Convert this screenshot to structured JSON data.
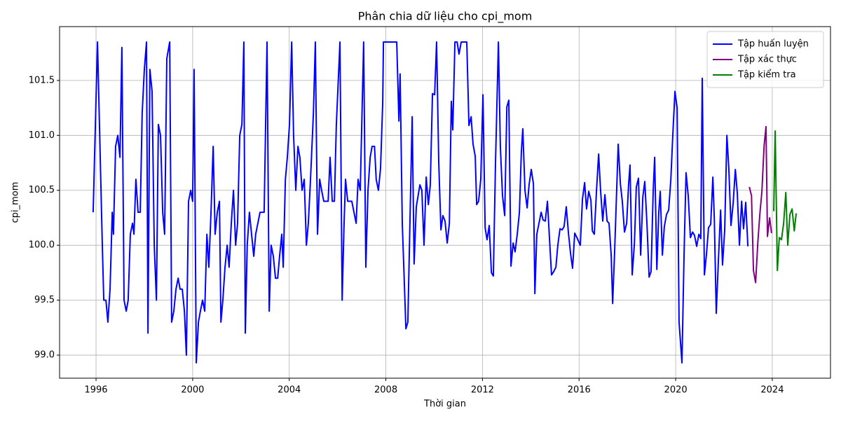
{
  "chart_data": {
    "type": "line",
    "title": "Phân chia dữ liệu cho cpi_mom",
    "x_label": "Thời gian",
    "y_label": "cpi_mom",
    "xlim": [
      1994.49,
      2026.41
    ],
    "ylim": [
      98.79,
      101.99
    ],
    "xticks": [
      1996,
      2000,
      2004,
      2008,
      2012,
      2016,
      2020,
      2024
    ],
    "yticks": [
      {
        "value": 99,
        "label": "99.0"
      },
      99.5,
      {
        "value": 100,
        "label": "100.0"
      },
      100.5,
      {
        "value": 101,
        "label": "101.0"
      },
      101.5
    ],
    "grid": true,
    "legend": "upper right",
    "series": [
      {
        "name": "Tập huấn luyện",
        "color": "#0000ff",
        "x": [
          1995.88,
          1996.06,
          1996.26,
          1996.32,
          1996.41,
          1996.49,
          1996.58,
          1996.67,
          1996.72,
          1996.81,
          1996.9,
          1996.99,
          1997.07,
          1997.16,
          1997.25,
          1997.33,
          1997.42,
          1997.51,
          1997.57,
          1997.65,
          1997.74,
          1997.83,
          1997.91,
          1998.0,
          1998.09,
          1998.15,
          1998.23,
          1998.32,
          1998.41,
          1998.5,
          1998.58,
          1998.67,
          1998.76,
          1998.84,
          1998.93,
          1999.05,
          1999.13,
          1999.22,
          1999.31,
          1999.4,
          1999.48,
          1999.57,
          1999.66,
          1999.74,
          1999.83,
          1999.92,
          2000.0,
          2000.06,
          2000.15,
          2000.24,
          2000.32,
          2000.41,
          2000.5,
          2000.59,
          2000.67,
          2000.76,
          2000.85,
          2000.93,
          2001.02,
          2001.11,
          2001.17,
          2001.25,
          2001.34,
          2001.43,
          2001.51,
          2001.6,
          2001.69,
          2001.78,
          2001.86,
          2001.95,
          2002.04,
          2002.12,
          2002.18,
          2002.26,
          2002.35,
          2002.44,
          2002.53,
          2002.61,
          2002.7,
          2002.79,
          2002.88,
          2002.96,
          2003.08,
          2003.17,
          2003.25,
          2003.34,
          2003.43,
          2003.52,
          2003.6,
          2003.69,
          2003.75,
          2003.84,
          2003.92,
          2004.01,
          2004.1,
          2004.18,
          2004.27,
          2004.36,
          2004.44,
          2004.53,
          2004.62,
          2004.71,
          2004.79,
          2004.88,
          2005.0,
          2005.08,
          2005.17,
          2005.26,
          2005.34,
          2005.43,
          2005.52,
          2005.61,
          2005.69,
          2005.78,
          2005.87,
          2005.95,
          2006.1,
          2006.19,
          2006.27,
          2006.33,
          2006.42,
          2006.5,
          2006.59,
          2006.68,
          2006.77,
          2006.85,
          2006.94,
          2007.08,
          2007.17,
          2007.26,
          2007.35,
          2007.43,
          2007.53,
          2007.6,
          2007.69,
          2007.78,
          2007.87,
          2007.9,
          2008.45,
          2008.54,
          2008.59,
          2008.68,
          2008.83,
          2008.91,
          2009.09,
          2009.17,
          2009.26,
          2009.41,
          2009.49,
          2009.58,
          2009.67,
          2009.76,
          2009.84,
          2009.93,
          2010.02,
          2010.1,
          2010.19,
          2010.28,
          2010.36,
          2010.45,
          2010.54,
          2010.63,
          2010.71,
          2010.77,
          2010.86,
          2010.95,
          2011.03,
          2011.12,
          2011.35,
          2011.44,
          2011.53,
          2011.61,
          2011.7,
          2011.76,
          2011.84,
          2011.93,
          2012.02,
          2012.11,
          2012.19,
          2012.28,
          2012.37,
          2012.45,
          2012.54,
          2012.66,
          2012.74,
          2012.83,
          2012.92,
          2013.01,
          2013.09,
          2013.18,
          2013.27,
          2013.35,
          2013.44,
          2013.53,
          2013.61,
          2013.67,
          2013.76,
          2013.85,
          2013.93,
          2014.02,
          2014.11,
          2014.17,
          2014.25,
          2014.34,
          2014.43,
          2014.51,
          2014.6,
          2014.69,
          2014.78,
          2014.86,
          2014.95,
          2015.04,
          2015.12,
          2015.21,
          2015.3,
          2015.38,
          2015.47,
          2015.56,
          2015.65,
          2015.73,
          2015.82,
          2015.91,
          2015.99,
          2016.05,
          2016.14,
          2016.23,
          2016.31,
          2016.4,
          2016.49,
          2016.55,
          2016.63,
          2016.72,
          2016.81,
          2016.89,
          2016.98,
          2017.07,
          2017.16,
          2017.24,
          2017.33,
          2017.39,
          2017.47,
          2017.62,
          2017.71,
          2017.79,
          2017.88,
          2017.97,
          2018.05,
          2018.11,
          2018.2,
          2018.29,
          2018.37,
          2018.46,
          2018.55,
          2018.64,
          2018.72,
          2018.81,
          2018.9,
          2018.98,
          2019.07,
          2019.13,
          2019.22,
          2019.3,
          2019.36,
          2019.45,
          2019.53,
          2019.62,
          2019.71,
          2019.8,
          2019.88,
          2019.97,
          2020.06,
          2020.14,
          2020.26,
          2020.35,
          2020.43,
          2020.52,
          2020.61,
          2020.7,
          2020.78,
          2020.87,
          2020.96,
          2021.04,
          2021.1,
          2021.19,
          2021.28,
          2021.36,
          2021.45,
          2021.54,
          2021.6,
          2021.68,
          2021.77,
          2021.86,
          2021.94,
          2022.03,
          2022.12,
          2022.2,
          2022.29,
          2022.38,
          2022.47,
          2022.55,
          2022.64,
          2022.73,
          2022.81,
          2022.9,
          2022.99
        ],
        "values": [
          100.3,
          101.85,
          100.0,
          99.5,
          99.5,
          99.3,
          99.6,
          100.3,
          100.1,
          100.9,
          101.0,
          100.8,
          101.8,
          99.5,
          99.4,
          99.5,
          100.1,
          100.2,
          100.1,
          100.6,
          100.3,
          100.3,
          101.2,
          101.6,
          101.85,
          99.2,
          101.6,
          101.4,
          100.0,
          99.5,
          101.1,
          101.0,
          100.3,
          100.1,
          101.7,
          101.85,
          99.3,
          99.4,
          99.6,
          99.7,
          99.6,
          99.6,
          99.4,
          99.0,
          100.4,
          100.5,
          100.4,
          101.6,
          98.93,
          99.3,
          99.4,
          99.5,
          99.4,
          100.1,
          99.8,
          100.3,
          100.9,
          100.1,
          100.3,
          100.4,
          99.3,
          99.5,
          99.8,
          100.0,
          99.8,
          100.2,
          100.5,
          100.0,
          100.2,
          101.0,
          101.1,
          101.85,
          99.2,
          100.0,
          100.3,
          100.1,
          99.9,
          100.1,
          100.2,
          100.3,
          100.3,
          100.3,
          101.85,
          99.4,
          100.0,
          99.9,
          99.7,
          99.7,
          99.9,
          100.1,
          99.8,
          100.6,
          100.8,
          101.1,
          101.85,
          101.0,
          100.5,
          100.9,
          100.8,
          100.5,
          100.6,
          100.0,
          100.2,
          100.6,
          101.2,
          101.85,
          100.1,
          100.6,
          100.5,
          100.4,
          100.4,
          100.4,
          100.8,
          100.4,
          100.4,
          101.1,
          101.85,
          99.5,
          100.2,
          100.6,
          100.4,
          100.4,
          100.4,
          100.3,
          100.2,
          100.6,
          100.5,
          101.85,
          99.8,
          100.5,
          100.8,
          100.9,
          100.9,
          100.6,
          100.5,
          100.7,
          101.3,
          101.85,
          101.85,
          101.13,
          101.56,
          100.2,
          99.24,
          99.3,
          101.17,
          99.83,
          100.35,
          100.55,
          100.5,
          100.0,
          100.62,
          100.37,
          100.55,
          101.38,
          101.37,
          101.85,
          100.75,
          100.14,
          100.27,
          100.22,
          100.02,
          100.2,
          101.31,
          101.05,
          101.85,
          101.85,
          101.74,
          101.85,
          101.85,
          101.09,
          101.17,
          100.92,
          100.81,
          100.37,
          100.4,
          100.6,
          101.37,
          100.16,
          100.05,
          100.18,
          99.75,
          99.72,
          100.75,
          101.85,
          100.9,
          100.45,
          100.27,
          101.26,
          101.32,
          99.81,
          100.02,
          99.94,
          100.1,
          100.3,
          100.85,
          101.06,
          100.5,
          100.34,
          100.55,
          100.69,
          100.56,
          99.56,
          100.1,
          100.2,
          100.3,
          100.23,
          100.22,
          100.4,
          100.04,
          99.73,
          99.76,
          99.8,
          100.0,
          100.15,
          100.14,
          100.17,
          100.35,
          100.11,
          99.92,
          99.79,
          100.11,
          100.07,
          100.03,
          100.0,
          100.42,
          100.57,
          100.33,
          100.49,
          100.41,
          100.13,
          100.1,
          100.49,
          100.83,
          100.5,
          100.22,
          100.46,
          100.22,
          100.2,
          99.91,
          99.47,
          99.93,
          100.92,
          100.56,
          100.4,
          100.12,
          100.2,
          100.55,
          100.73,
          99.73,
          100.01,
          100.53,
          100.61,
          99.91,
          100.44,
          100.58,
          100.2,
          99.71,
          99.76,
          100.5,
          100.8,
          99.78,
          100.3,
          100.49,
          99.91,
          100.17,
          100.28,
          100.32,
          100.6,
          101.0,
          101.4,
          101.25,
          99.3,
          98.93,
          99.95,
          100.66,
          100.45,
          100.07,
          100.12,
          100.09,
          99.99,
          100.1,
          100.06,
          101.52,
          99.73,
          99.93,
          100.16,
          100.19,
          100.62,
          100.24,
          99.38,
          99.87,
          100.32,
          99.82,
          100.14,
          101.0,
          100.7,
          100.18,
          100.38,
          100.69,
          100.48,
          100.0,
          100.4,
          100.15,
          100.39,
          99.99
        ]
      },
      {
        "name": "Tập xác thực",
        "color": "#800080",
        "x": [
          2023.05,
          2023.14,
          2023.22,
          2023.31,
          2023.4,
          2023.48,
          2023.57,
          2023.66,
          2023.74,
          2023.8,
          2023.89,
          2023.97
        ],
        "values": [
          100.53,
          100.45,
          99.77,
          99.66,
          100.02,
          100.27,
          100.49,
          100.9,
          101.08,
          100.08,
          100.25,
          100.11
        ]
      },
      {
        "name": "Tập kiểm tra",
        "color": "#008000",
        "x": [
          2024.06,
          2024.12,
          2024.21,
          2024.29,
          2024.38,
          2024.47,
          2024.56,
          2024.64,
          2024.73,
          2024.82,
          2024.91,
          2024.99
        ],
        "values": [
          100.31,
          101.04,
          99.77,
          100.07,
          100.05,
          100.2,
          100.48,
          100.0,
          100.28,
          100.33,
          100.13,
          100.29
        ]
      }
    ]
  }
}
